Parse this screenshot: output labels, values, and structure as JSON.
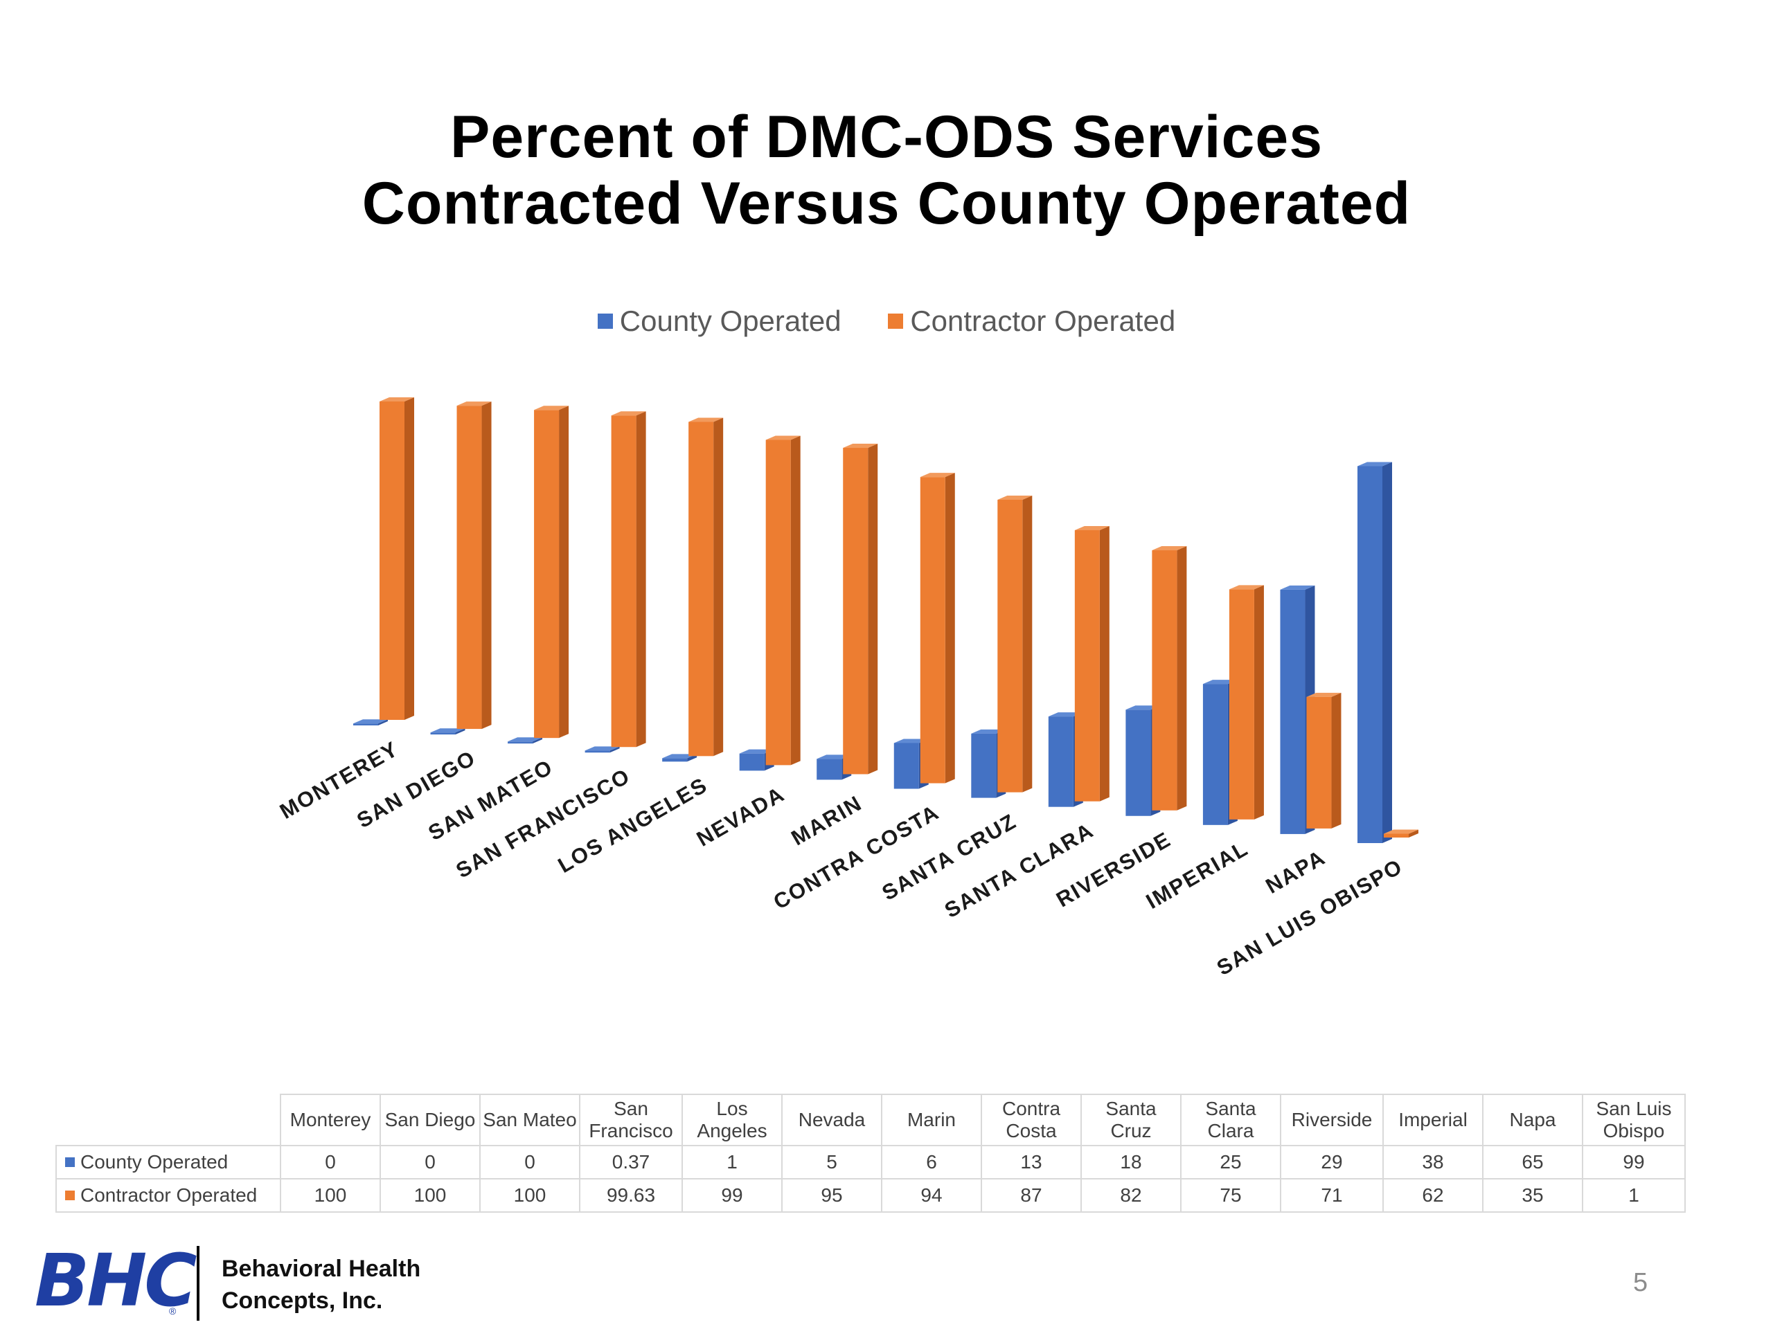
{
  "slide": {
    "title_line1": "Percent of DMC-ODS Services",
    "title_line2": "Contracted Versus County Operated",
    "page_number": "5",
    "company_line1": "Behavioral Health",
    "company_line2": "Concepts, Inc.",
    "logo_text": "BHC",
    "logo_mark": "®"
  },
  "chart_data": {
    "type": "bar",
    "variant": "3d-clustered-column",
    "title": "Percent of DMC-ODS Services Contracted Versus County Operated",
    "categories": [
      "MONTEREY",
      "SAN DIEGO",
      "SAN MATEO",
      "SAN FRANCISCO",
      "LOS ANGELES",
      "NEVADA",
      "MARIN",
      "CONTRA COSTA",
      "SANTA CRUZ",
      "SANTA CLARA",
      "RIVERSIDE",
      "IMPERIAL",
      "NAPA",
      "SAN LUIS OBISPO"
    ],
    "table_headers": [
      "Monterey",
      "San Diego",
      "San Mateo",
      "San Francisco",
      "Los Angeles",
      "Nevada",
      "Marin",
      "Contra Costa",
      "Santa Cruz",
      "Santa Clara",
      "Riverside",
      "Imperial",
      "Napa",
      "San Luis Obispo"
    ],
    "series": [
      {
        "name": "County Operated",
        "color": "#4472c4",
        "side_color": "#2f55a0",
        "top_color": "#5f8ad4",
        "values": [
          0,
          0,
          0,
          0.37,
          1,
          5,
          6,
          13,
          18,
          25,
          29,
          38,
          65,
          99
        ],
        "labels": [
          "0",
          "0",
          "0",
          "0.37",
          "1",
          "5",
          "6",
          "13",
          "18",
          "25",
          "29",
          "38",
          "65",
          "99"
        ]
      },
      {
        "name": "Contractor Operated",
        "color": "#ed7d31",
        "side_color": "#b95a1c",
        "top_color": "#f29a5c",
        "values": [
          100,
          100,
          100,
          99.63,
          99,
          95,
          94,
          87,
          82,
          75,
          71,
          62,
          35,
          1
        ],
        "labels": [
          "100",
          "100",
          "100",
          "99.63",
          "99",
          "95",
          "94",
          "87",
          "82",
          "75",
          "71",
          "62",
          "35",
          "1"
        ]
      }
    ],
    "ylim": [
      0,
      100
    ],
    "legend_position": "top",
    "data_table": true,
    "grid": false,
    "axis_label_color": "#1a1a1a"
  }
}
